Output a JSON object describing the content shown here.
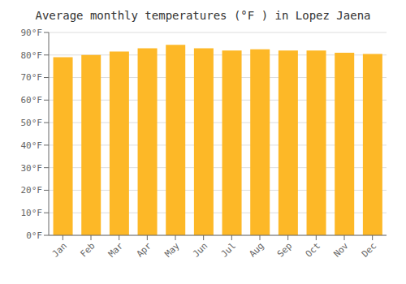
{
  "chart_data": {
    "type": "bar",
    "title": "Average monthly temperatures (°F ) in Lopez Jaena",
    "categories": [
      "Jan",
      "Feb",
      "Mar",
      "Apr",
      "May",
      "Jun",
      "Jul",
      "Aug",
      "Sep",
      "Oct",
      "Nov",
      "Dec"
    ],
    "values": [
      79,
      80,
      81.5,
      83,
      84.5,
      83,
      82,
      82.5,
      82,
      82,
      81,
      80.5
    ],
    "color": "#FDB827",
    "ylim": [
      0,
      90
    ],
    "yticks": [
      {
        "value": 0,
        "label": "0°F"
      },
      {
        "value": 10,
        "label": "10°F"
      },
      {
        "value": 20,
        "label": "20°F"
      },
      {
        "value": 30,
        "label": "30°F"
      },
      {
        "value": 40,
        "label": "40°F"
      },
      {
        "value": 50,
        "label": "50°F"
      },
      {
        "value": 60,
        "label": "60°F"
      },
      {
        "value": 70,
        "label": "70°F"
      },
      {
        "value": 80,
        "label": "80°F"
      },
      {
        "value": 90,
        "label": "90°F"
      }
    ],
    "grid": true
  }
}
